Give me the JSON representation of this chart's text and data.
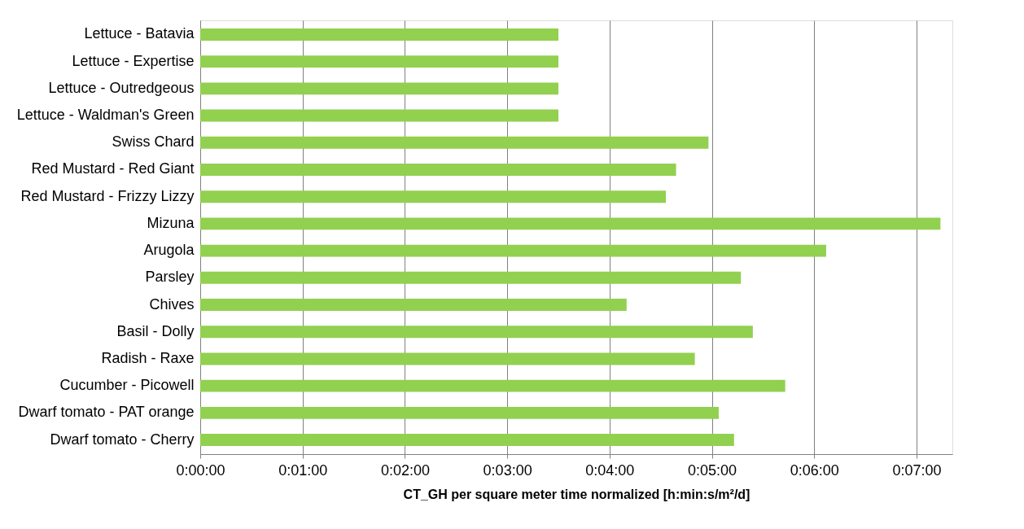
{
  "chart_data": {
    "type": "bar",
    "orientation": "horizontal",
    "xlabel": "CT_GH per square meter time normalized [h:min:s/m²/d]",
    "categories": [
      "Lettuce - Batavia",
      "Lettuce - Expertise",
      "Lettuce - Outredgeous",
      "Lettuce - Waldman's Green",
      "Swiss Chard",
      "Red Mustard - Red Giant",
      "Red Mustard - Frizzy Lizzy",
      "Mizuna",
      "Arugola",
      "Parsley",
      "Chives",
      "Basil - Dolly",
      "Radish - Raxe",
      "Cucumber - Picowell",
      "Dwarf tomato - PAT orange",
      "Dwarf tomato - Cherry"
    ],
    "values": [
      210,
      210,
      210,
      210,
      298,
      279,
      273,
      434,
      367,
      317,
      250,
      324,
      290,
      343,
      304,
      313
    ],
    "color": "#92d050",
    "xlim": [
      0,
      441
    ],
    "xticks": [
      {
        "value": 0,
        "label": "0:00:00"
      },
      {
        "value": 60,
        "label": "0:01:00"
      },
      {
        "value": 120,
        "label": "0:02:00"
      },
      {
        "value": 180,
        "label": "0:03:00"
      },
      {
        "value": 240,
        "label": "0:04:00"
      },
      {
        "value": 300,
        "label": "0:05:00"
      },
      {
        "value": 360,
        "label": "0:06:00"
      },
      {
        "value": 420,
        "label": "0:07:00"
      }
    ],
    "grid": "x"
  }
}
